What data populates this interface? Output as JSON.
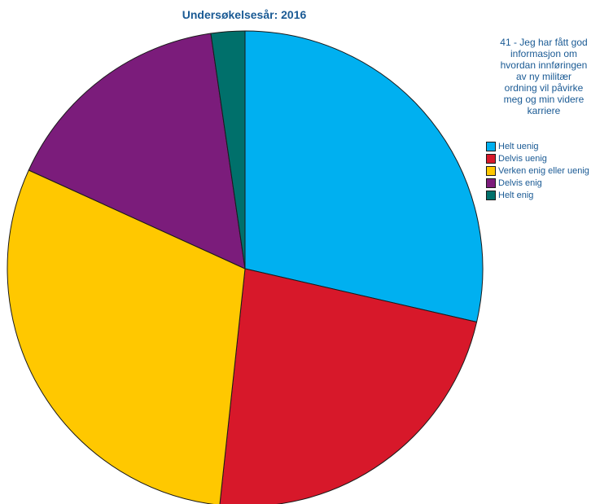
{
  "chart_data": {
    "type": "pie",
    "title": "Undersøkelsesår: 2016",
    "legend_title": "41 - Jeg har fått god\ninformasjon om\nhvordan innføringen\nav ny militær\nordning vil påvirke\nmeg og min videre\nkarriere",
    "legend_placement": "right",
    "slices": [
      {
        "label": "Helt uenig",
        "value": 28.6,
        "color": "#00b0f0"
      },
      {
        "label": "Delvis uenig",
        "value": 23.1,
        "color": "#d7182a"
      },
      {
        "label": "Verken enig eller uenig",
        "value": 30.1,
        "color": "#ffc800"
      },
      {
        "label": "Delvis enig",
        "value": 15.9,
        "color": "#7b1c7b"
      },
      {
        "label": "Helt enig",
        "value": 2.3,
        "color": "#00706b"
      }
    ]
  }
}
